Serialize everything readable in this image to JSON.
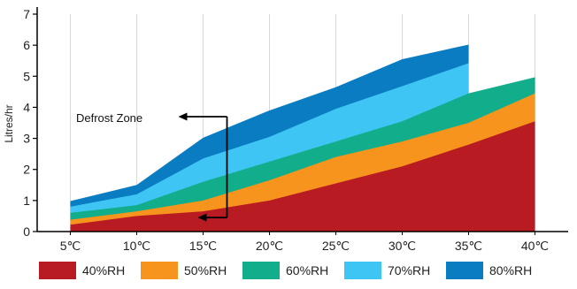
{
  "chart_data": {
    "type": "area",
    "title": "",
    "xlabel": "",
    "ylabel": "Litres/hr",
    "categories": [
      "5℃",
      "10℃",
      "15℃",
      "20℃",
      "25℃",
      "30℃",
      "35℃",
      "40℃"
    ],
    "x": [
      5,
      10,
      15,
      20,
      25,
      30,
      35,
      40
    ],
    "ylim": [
      0,
      7
    ],
    "yticks": [
      "0",
      "1",
      "2",
      "3",
      "4",
      "5",
      "6",
      "7"
    ],
    "grid": "vertical",
    "legend_position": "bottom",
    "stacked": false,
    "series": [
      {
        "name": "80%RH",
        "color": "#0a7cc1",
        "values": [
          0.98,
          1.5,
          3.02,
          3.9,
          4.65,
          5.55,
          6.02,
          null
        ]
      },
      {
        "name": "70%RH",
        "color": "#3ec5f3",
        "values": [
          0.8,
          1.2,
          2.35,
          3.05,
          3.95,
          4.68,
          5.42,
          null
        ]
      },
      {
        "name": "60%RH",
        "color": "#12ad8a",
        "values": [
          0.6,
          0.85,
          1.6,
          2.25,
          2.9,
          3.55,
          4.45,
          4.97
        ]
      },
      {
        "name": "50%RH",
        "color": "#f7941d",
        "values": [
          0.38,
          0.65,
          1.0,
          1.65,
          2.4,
          2.9,
          3.5,
          4.45
        ]
      },
      {
        "name": "40%RH",
        "color": "#b81c22",
        "values": [
          0.22,
          0.5,
          0.65,
          1.0,
          1.55,
          2.1,
          2.8,
          3.55
        ]
      }
    ],
    "annotations": [
      {
        "text": "Defrost Zone"
      }
    ]
  }
}
